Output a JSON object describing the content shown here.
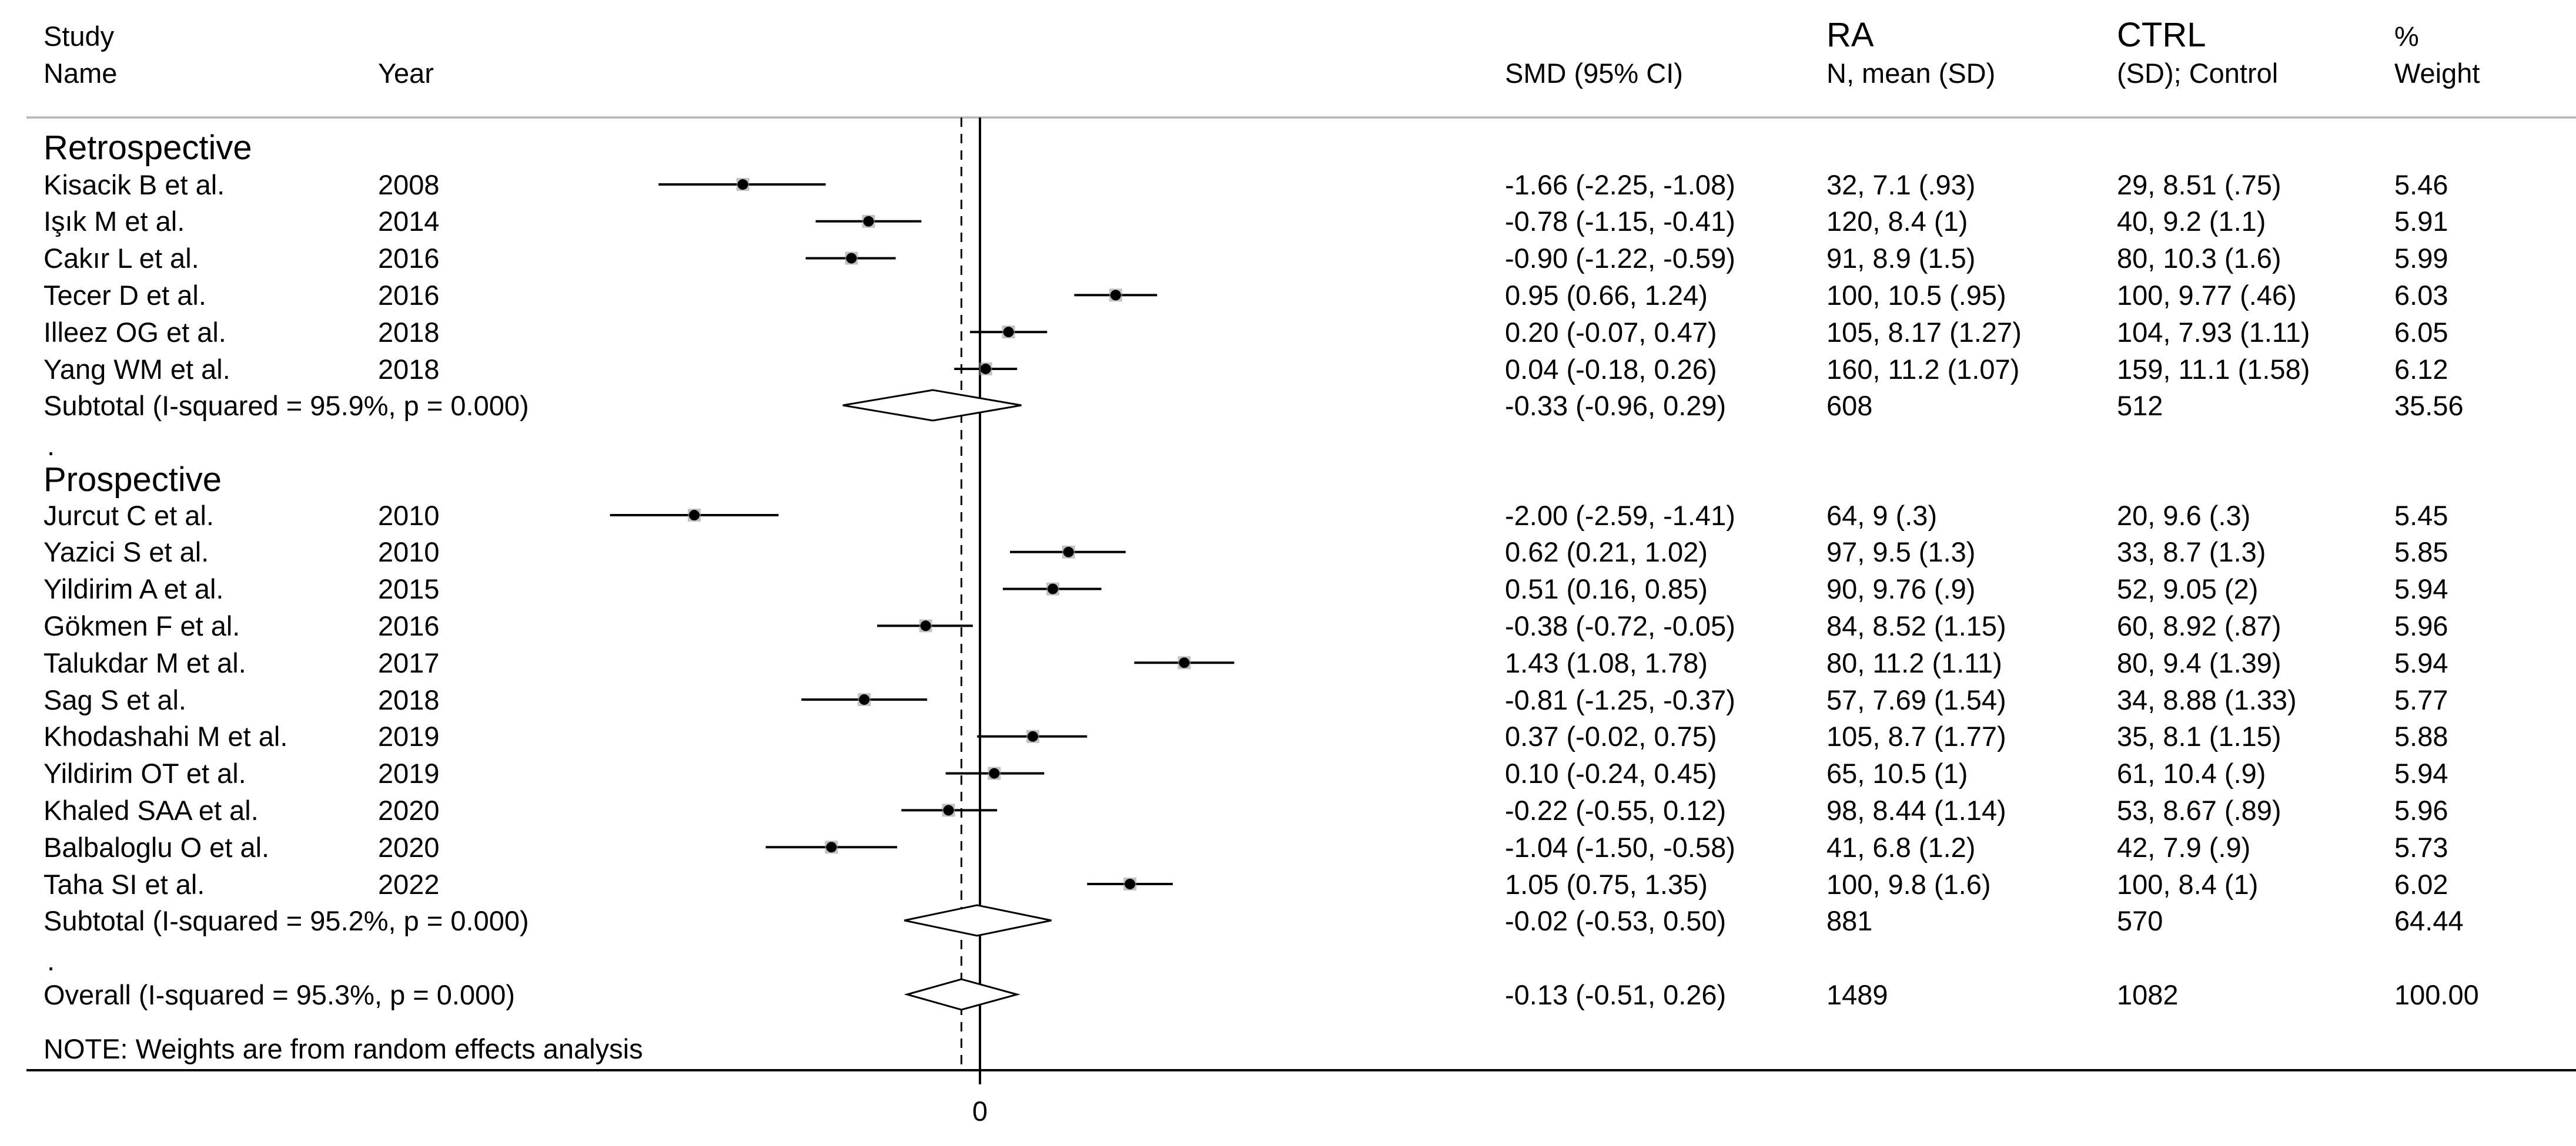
{
  "header": {
    "study_line1": "Study",
    "study_line2": "Name",
    "year": "Year",
    "smd": "SMD (95% CI)",
    "ra_line1": "RA",
    "ra_line2": "N, mean (SD)",
    "ctrl_line1": "CTRL",
    "ctrl_line2": "(SD); Control",
    "weight_line1": "%",
    "weight_line2": "Weight"
  },
  "footer": {
    "note": "NOTE: Weights are from random effects analysis",
    "dot1": ".",
    "dot2": "."
  },
  "colors": {
    "ink": "#000000",
    "rule": "#bbbbbb"
  },
  "chart_data": {
    "type": "forest",
    "title": "",
    "xlabel": "",
    "x_ticks": [
      0
    ],
    "xlim": [
      -2.85,
      2.0
    ],
    "null_line": 0,
    "overall_line": -0.13,
    "groups": [
      {
        "name": "Retrospective",
        "studies": [
          {
            "name": "Kisacik B et al.",
            "year": "2008",
            "smd": -1.66,
            "lo": -2.25,
            "hi": -1.08,
            "smd_text": "-1.66 (-2.25, -1.08)",
            "ra": "32, 7.1 (.93)",
            "ctrl": "29, 8.51 (.75)",
            "weight": "5.46"
          },
          {
            "name": "Işık M et al.",
            "year": "2014",
            "smd": -0.78,
            "lo": -1.15,
            "hi": -0.41,
            "smd_text": "-0.78 (-1.15, -0.41)",
            "ra": "120, 8.4 (1)",
            "ctrl": "40, 9.2 (1.1)",
            "weight": "5.91"
          },
          {
            "name": "Cakır L et al.",
            "year": "2016",
            "smd": -0.9,
            "lo": -1.22,
            "hi": -0.59,
            "smd_text": "-0.90 (-1.22, -0.59)",
            "ra": "91, 8.9 (1.5)",
            "ctrl": "80, 10.3 (1.6)",
            "weight": "5.99"
          },
          {
            "name": "Tecer D et al.",
            "year": "2016",
            "smd": 0.95,
            "lo": 0.66,
            "hi": 1.24,
            "smd_text": "0.95 (0.66, 1.24)",
            "ra": "100, 10.5 (.95)",
            "ctrl": "100, 9.77 (.46)",
            "weight": "6.03"
          },
          {
            "name": "Illeez OG et al.",
            "year": "2018",
            "smd": 0.2,
            "lo": -0.07,
            "hi": 0.47,
            "smd_text": "0.20 (-0.07, 0.47)",
            "ra": "105, 8.17 (1.27)",
            "ctrl": "104, 7.93 (1.11)",
            "weight": "6.05"
          },
          {
            "name": "Yang WM et al.",
            "year": "2018",
            "smd": 0.04,
            "lo": -0.18,
            "hi": 0.26,
            "smd_text": "0.04 (-0.18, 0.26)",
            "ra": "160, 11.2 (1.07)",
            "ctrl": "159, 11.1 (1.58)",
            "weight": "6.12"
          }
        ],
        "subtotal": {
          "label": "Subtotal  (I-squared = 95.9%, p = 0.000)",
          "smd": -0.33,
          "lo": -0.96,
          "hi": 0.29,
          "smd_text": "-0.33 (-0.96, 0.29)",
          "ra": "608",
          "ctrl": "512",
          "weight": "35.56"
        }
      },
      {
        "name": "Prospective",
        "studies": [
          {
            "name": "Jurcut C et al.",
            "year": "2010",
            "smd": -2.0,
            "lo": -2.59,
            "hi": -1.41,
            "smd_text": "-2.00 (-2.59, -1.41)",
            "ra": "64, 9 (.3)",
            "ctrl": "20, 9.6 (.3)",
            "weight": "5.45"
          },
          {
            "name": "Yazici S et al.",
            "year": "2010",
            "smd": 0.62,
            "lo": 0.21,
            "hi": 1.02,
            "smd_text": "0.62 (0.21, 1.02)",
            "ra": "97, 9.5 (1.3)",
            "ctrl": "33, 8.7 (1.3)",
            "weight": "5.85"
          },
          {
            "name": "Yildirim A et al.",
            "year": "2015",
            "smd": 0.51,
            "lo": 0.16,
            "hi": 0.85,
            "smd_text": "0.51 (0.16, 0.85)",
            "ra": "90, 9.76 (.9)",
            "ctrl": "52, 9.05 (2)",
            "weight": "5.94"
          },
          {
            "name": "Gökmen F et al.",
            "year": "2016",
            "smd": -0.38,
            "lo": -0.72,
            "hi": -0.05,
            "smd_text": "-0.38 (-0.72, -0.05)",
            "ra": "84, 8.52 (1.15)",
            "ctrl": "60, 8.92 (.87)",
            "weight": "5.96"
          },
          {
            "name": "Talukdar M et al.",
            "year": "2017",
            "smd": 1.43,
            "lo": 1.08,
            "hi": 1.78,
            "smd_text": "1.43 (1.08, 1.78)",
            "ra": "80, 11.2 (1.11)",
            "ctrl": "80, 9.4 (1.39)",
            "weight": "5.94"
          },
          {
            "name": "Sag S et al.",
            "year": "2018",
            "smd": -0.81,
            "lo": -1.25,
            "hi": -0.37,
            "smd_text": "-0.81 (-1.25, -0.37)",
            "ra": "57, 7.69 (1.54)",
            "ctrl": "34, 8.88 (1.33)",
            "weight": "5.77"
          },
          {
            "name": "Khodashahi M et al.",
            "year": "2019",
            "smd": 0.37,
            "lo": -0.02,
            "hi": 0.75,
            "smd_text": "0.37 (-0.02, 0.75)",
            "ra": "105, 8.7 (1.77)",
            "ctrl": "35, 8.1 (1.15)",
            "weight": "5.88"
          },
          {
            "name": "Yildirim OT et al.",
            "year": "2019",
            "smd": 0.1,
            "lo": -0.24,
            "hi": 0.45,
            "smd_text": "0.10 (-0.24, 0.45)",
            "ra": "65, 10.5 (1)",
            "ctrl": "61, 10.4 (.9)",
            "weight": "5.94"
          },
          {
            "name": "Khaled SAA et al.",
            "year": "2020",
            "smd": -0.22,
            "lo": -0.55,
            "hi": 0.12,
            "smd_text": "-0.22 (-0.55, 0.12)",
            "ra": "98, 8.44 (1.14)",
            "ctrl": "53, 8.67 (.89)",
            "weight": "5.96"
          },
          {
            "name": "Balbaloglu O et al.",
            "year": "2020",
            "smd": -1.04,
            "lo": -1.5,
            "hi": -0.58,
            "smd_text": "-1.04 (-1.50, -0.58)",
            "ra": "41, 6.8 (1.2)",
            "ctrl": "42, 7.9 (.9)",
            "weight": "5.73"
          },
          {
            "name": "Taha SI et al.",
            "year": "2022",
            "smd": 1.05,
            "lo": 0.75,
            "hi": 1.35,
            "smd_text": "1.05 (0.75, 1.35)",
            "ra": "100, 9.8 (1.6)",
            "ctrl": "100, 8.4 (1)",
            "weight": "6.02"
          }
        ],
        "subtotal": {
          "label": "Subtotal  (I-squared = 95.2%, p = 0.000)",
          "smd": -0.02,
          "lo": -0.53,
          "hi": 0.5,
          "smd_text": "-0.02 (-0.53, 0.50)",
          "ra": "881",
          "ctrl": "570",
          "weight": "64.44"
        }
      }
    ],
    "overall": {
      "label": "Overall  (I-squared = 95.3%, p = 0.000)",
      "smd": -0.13,
      "lo": -0.51,
      "hi": 0.26,
      "smd_text": "-0.13 (-0.51, 0.26)",
      "ra": "1489",
      "ctrl": "1082",
      "weight": "100.00"
    }
  }
}
